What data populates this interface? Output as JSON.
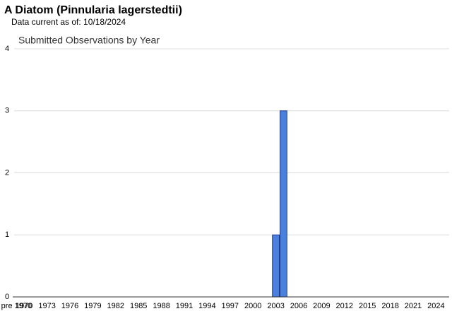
{
  "chart_data": {
    "type": "bar",
    "title": "A Diatom   (Pinnularia lagerstedtii)",
    "subtitle": "Data current as of: 10/18/2024",
    "chart_title": "Submitted Observations by Year",
    "categories": [
      "pre 1970",
      "1970",
      null,
      null,
      "1973",
      null,
      null,
      "1976",
      null,
      null,
      "1979",
      null,
      null,
      "1982",
      null,
      null,
      "1985",
      null,
      null,
      "1988",
      null,
      null,
      "1991",
      null,
      null,
      "1994",
      null,
      null,
      "1997",
      null,
      null,
      "2000",
      null,
      null,
      "2003",
      null,
      null,
      "2006",
      null,
      null,
      "2009",
      null,
      null,
      "2012",
      null,
      null,
      "2015",
      null,
      null,
      "2018",
      null,
      null,
      "2021",
      null,
      null,
      "2024"
    ],
    "values": [
      0,
      0,
      0,
      0,
      0,
      0,
      0,
      0,
      0,
      0,
      0,
      0,
      0,
      0,
      0,
      0,
      0,
      0,
      0,
      0,
      0,
      0,
      0,
      0,
      0,
      0,
      0,
      0,
      0,
      0,
      0,
      0,
      0,
      0,
      1,
      3,
      0,
      0,
      0,
      0,
      0,
      0,
      0,
      0,
      0,
      0,
      0,
      0,
      0,
      0,
      0,
      0,
      0,
      0,
      0,
      0
    ],
    "color": "#4a7fdc",
    "ylim": [
      0,
      4
    ],
    "yticks": [
      0,
      1,
      2,
      3,
      4
    ],
    "grid": true
  }
}
